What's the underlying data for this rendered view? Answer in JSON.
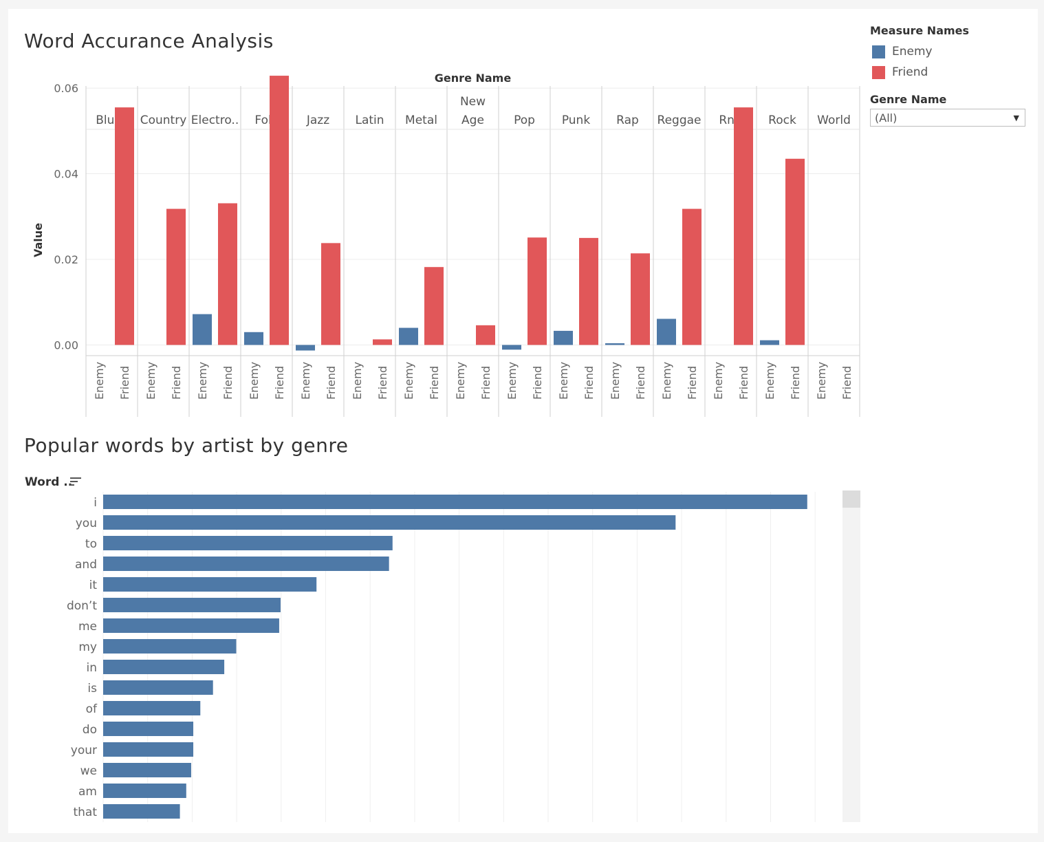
{
  "chart_title": "Word Accurance Analysis",
  "bar_title": "Popular words by artist by genre",
  "legend": {
    "title": "Measure Names",
    "items": [
      {
        "label": "Enemy",
        "color": "#4e79a7"
      },
      {
        "label": "Friend",
        "color": "#e15759"
      }
    ]
  },
  "filter": {
    "label": "Genre Name",
    "value": "(All)"
  },
  "words_header": "Word ..",
  "icons": {
    "sort": "sort-descending-icon",
    "dropdown": "chevron-down-icon"
  },
  "chart_data": [
    {
      "type": "bar",
      "title": "Word Accurance Analysis",
      "column_header": "Genre Name",
      "ylabel": "Value",
      "ylim": [
        -0.0025,
        0.0605
      ],
      "yticks": [
        "0.00",
        "0.02",
        "0.04",
        "0.06"
      ],
      "genres": [
        "Blues",
        "Country",
        "Electro..",
        "Folk",
        "Jazz",
        "Latin",
        "Metal",
        "New Age",
        "Pop",
        "Punk",
        "Rap",
        "Reggae",
        "RnB",
        "Rock",
        "World"
      ],
      "sub_categories": [
        "Enemy",
        "Friend"
      ],
      "series": [
        {
          "name": "Enemy",
          "color": "#4e79a7",
          "values": [
            0,
            0,
            0.0072,
            0.003,
            -0.0013,
            0,
            0.004,
            0,
            -0.0011,
            0.0033,
            0.0004,
            0.0061,
            0,
            0.0011,
            0
          ]
        },
        {
          "name": "Friend",
          "color": "#e15759",
          "values": [
            0.0555,
            0.0318,
            0.0331,
            0.0629,
            0.0238,
            0.0013,
            0.0182,
            0.0046,
            0.0251,
            0.025,
            0.0214,
            0.0318,
            0.0555,
            0.0435,
            0
          ]
        }
      ],
      "grid": true
    },
    {
      "type": "bar",
      "orientation": "horizontal",
      "title": "Popular words by artist by genre",
      "categories": [
        "i",
        "you",
        "to",
        "and",
        "it",
        "don’t",
        "me",
        "my",
        "in",
        "is",
        "of",
        "do",
        "your",
        "we",
        "am",
        "that"
      ],
      "values": [
        1000,
        813,
        411,
        406,
        303,
        252,
        250,
        189,
        172,
        156,
        138,
        128,
        128,
        125,
        118,
        109
      ],
      "xlim": [
        0,
        1010
      ],
      "color": "#4e79a7",
      "grid": true
    }
  ]
}
